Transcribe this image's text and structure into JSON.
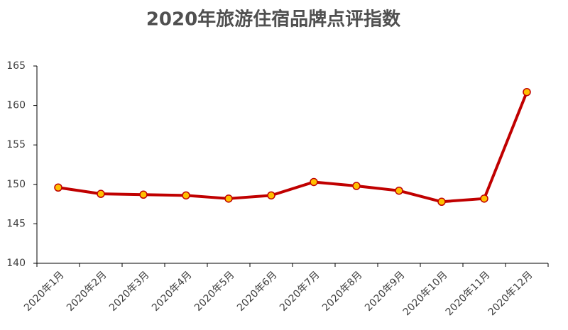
{
  "chart_data": {
    "type": "line",
    "title": "2020年旅游住宿品牌点评指数",
    "categories": [
      "2020年1月",
      "2020年2月",
      "2020年3月",
      "2020年4月",
      "2020年5月",
      "2020年6月",
      "2020年7月",
      "2020年8月",
      "2020年9月",
      "2020年10月",
      "2020年11月",
      "2020年12月"
    ],
    "series": [
      {
        "name": "旅游住宿品牌点评指数",
        "color": "#c00000",
        "marker_color": "#ffc000",
        "values": [
          149.6,
          148.8,
          148.7,
          148.6,
          148.2,
          148.6,
          150.3,
          149.8,
          149.2,
          147.8,
          148.2,
          161.7
        ]
      }
    ],
    "ylim": [
      140,
      165
    ],
    "yticks": [
      140,
      145,
      150,
      155,
      160,
      165
    ],
    "grid": false,
    "legend": false
  }
}
